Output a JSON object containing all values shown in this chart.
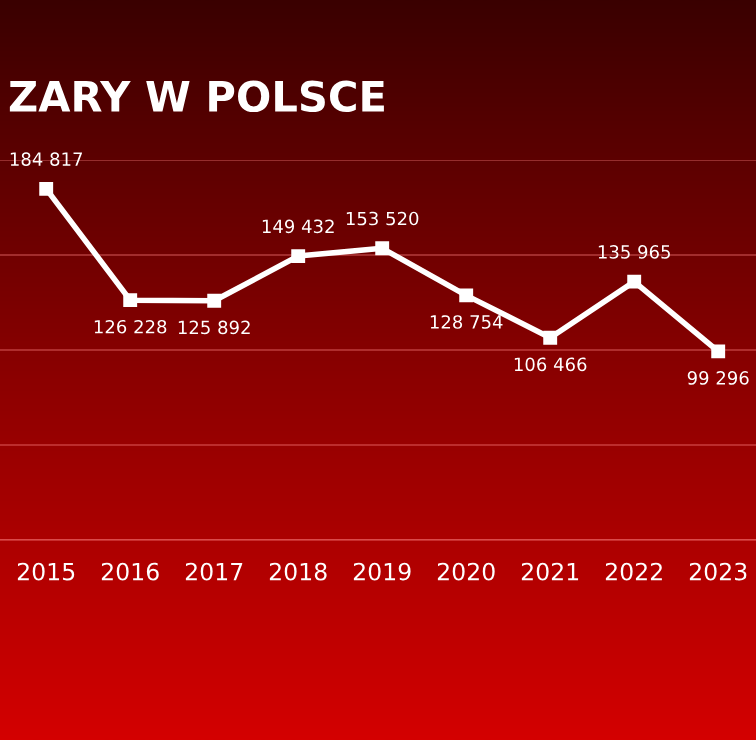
{
  "chart_data": {
    "type": "line",
    "title": "ZARY W POLSCE",
    "categories": [
      "2015",
      "2016",
      "2017",
      "2018",
      "2019",
      "2020",
      "2021",
      "2022",
      "2023"
    ],
    "series": [
      {
        "color": "#ffffff",
        "values": [
          184817,
          126228,
          125892,
          149432,
          153520,
          128754,
          106466,
          135965,
          99296
        ],
        "value_labels": [
          "184 817",
          "126 228",
          "125 892",
          "149 432",
          "153 520",
          "128 754",
          "106 466",
          "135 965",
          "99 296"
        ]
      }
    ],
    "ylim": [
      0,
      200000
    ],
    "yticks": [
      {
        "value": 0,
        "label": null
      },
      {
        "value": 50000,
        "label": null
      },
      {
        "value": 100000,
        "label": null
      },
      {
        "value": 150000,
        "label": null
      },
      {
        "value": 200000,
        "label": null
      }
    ],
    "tick_labels": "x",
    "grid": "y",
    "marker": "square",
    "line_style": "solid"
  }
}
